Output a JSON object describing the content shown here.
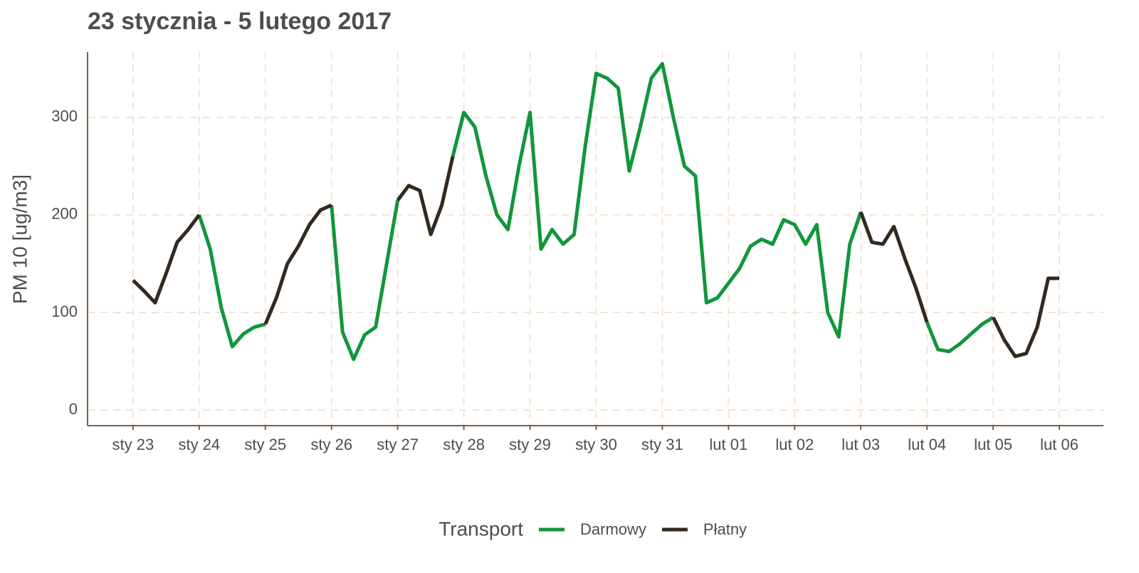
{
  "chart_data": {
    "type": "line",
    "title": "23 stycznia - 5 lutego 2017",
    "y_label": "PM 10 [ug/m3]",
    "legend_title": "Transport",
    "legend_position": "bottom",
    "grid": true,
    "x": [
      0,
      4,
      8,
      12,
      16,
      20,
      24,
      28,
      32,
      36,
      40,
      44,
      48,
      52,
      56,
      60,
      64,
      68,
      72,
      76,
      80,
      84,
      88,
      92,
      96,
      100,
      104,
      108,
      112,
      116,
      120,
      124,
      128,
      132,
      136,
      140,
      144,
      148,
      152,
      156,
      160,
      164,
      168,
      172,
      176,
      180,
      184,
      188,
      192,
      196,
      200,
      204,
      208,
      212,
      216,
      220,
      224,
      228,
      232,
      236,
      240,
      244,
      248,
      252,
      256,
      260,
      264,
      268,
      272,
      276,
      280,
      284,
      288,
      292,
      296,
      300,
      304,
      308,
      312,
      316,
      320,
      324,
      328,
      332,
      336
    ],
    "xlim": [
      -16.5,
      352
    ],
    "xticks": [
      {
        "value": 0,
        "label": "sty 23"
      },
      {
        "value": 24,
        "label": "sty 24"
      },
      {
        "value": 48,
        "label": "sty 25"
      },
      {
        "value": 72,
        "label": "sty 26"
      },
      {
        "value": 96,
        "label": "sty 27"
      },
      {
        "value": 120,
        "label": "sty 28"
      },
      {
        "value": 144,
        "label": "sty 29"
      },
      {
        "value": 168,
        "label": "sty 30"
      },
      {
        "value": 192,
        "label": "sty 31"
      },
      {
        "value": 216,
        "label": "lut 01"
      },
      {
        "value": 240,
        "label": "lut 02"
      },
      {
        "value": 264,
        "label": "lut 03"
      },
      {
        "value": 288,
        "label": "lut 04"
      },
      {
        "value": 312,
        "label": "lut 05"
      },
      {
        "value": 336,
        "label": "lut 06"
      }
    ],
    "ylim": [
      -16,
      367
    ],
    "yticks": [
      0,
      100,
      200,
      300
    ],
    "series": [
      {
        "name": "Darmowy",
        "color": "#12963a",
        "values": [
          null,
          null,
          null,
          null,
          null,
          null,
          200,
          165,
          105,
          65,
          78,
          85,
          88,
          null,
          null,
          null,
          null,
          null,
          210,
          80,
          52,
          77,
          85,
          150,
          215,
          null,
          null,
          null,
          null,
          260,
          305,
          290,
          240,
          200,
          185,
          250,
          305,
          165,
          185,
          170,
          180,
          270,
          345,
          340,
          330,
          245,
          290,
          340,
          355,
          300,
          250,
          240,
          110,
          115,
          130,
          145,
          168,
          175,
          170,
          195,
          190,
          170,
          190,
          100,
          75,
          170,
          203,
          null,
          null,
          null,
          null,
          null,
          90,
          62,
          60,
          68,
          78,
          88,
          95,
          null,
          null,
          null,
          null,
          null,
          null
        ]
      },
      {
        "name": "Płatny",
        "color": "#33291f",
        "values": [
          133,
          122,
          110,
          140,
          172,
          185,
          200,
          null,
          null,
          null,
          null,
          null,
          88,
          115,
          150,
          168,
          190,
          205,
          210,
          null,
          null,
          null,
          null,
          null,
          215,
          230,
          225,
          180,
          210,
          260,
          null,
          null,
          null,
          null,
          null,
          null,
          null,
          null,
          null,
          null,
          null,
          null,
          null,
          null,
          null,
          null,
          null,
          null,
          null,
          null,
          null,
          null,
          null,
          null,
          null,
          null,
          null,
          null,
          null,
          null,
          null,
          null,
          null,
          null,
          null,
          null,
          203,
          172,
          170,
          188,
          155,
          125,
          90,
          null,
          null,
          null,
          null,
          null,
          95,
          72,
          55,
          58,
          85,
          135,
          135
        ]
      }
    ]
  }
}
